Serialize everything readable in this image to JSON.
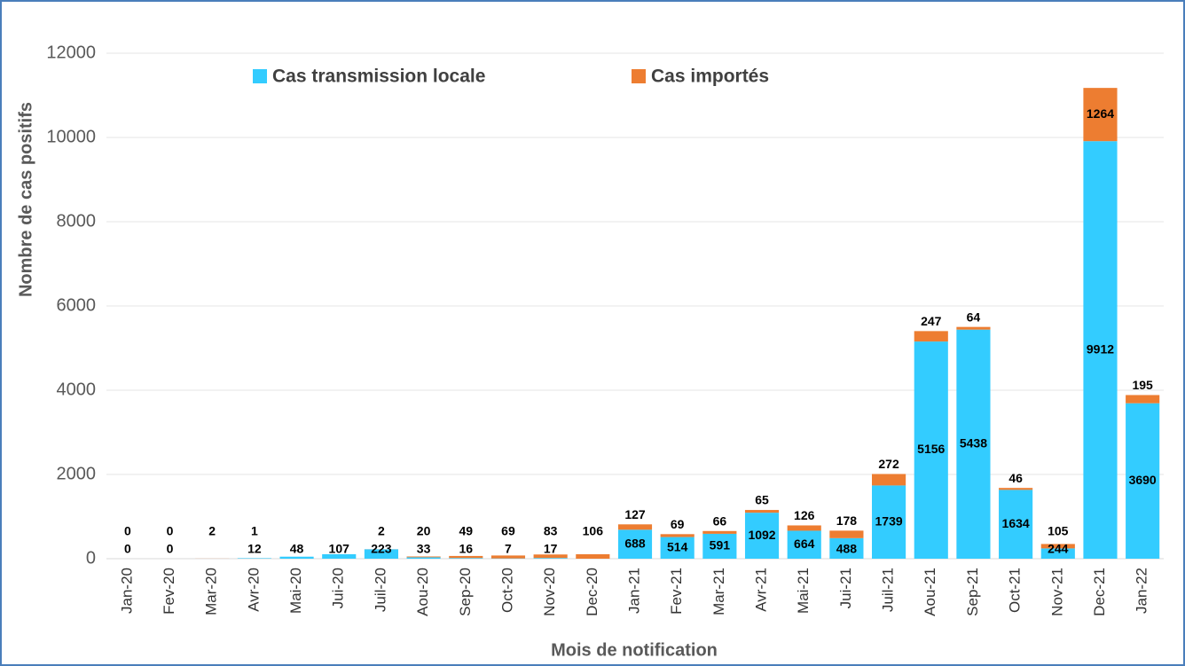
{
  "chart_data": {
    "type": "stacked-bar",
    "xlabel": "Mois de notification",
    "ylabel": "Nombre de cas positifs",
    "categories": [
      "Jan-20",
      "Fev-20",
      "Mar-20",
      "Avr-20",
      "Mai-20",
      "Jui-20",
      "Juil-20",
      "Aou-20",
      "Sep-20",
      "Oct-20",
      "Nov-20",
      "Dec-20",
      "Jan-21",
      "Fev-21",
      "Mar-21",
      "Avr-21",
      "Mai-21",
      "Jui-21",
      "Juil-21",
      "Aou-21",
      "Sep-21",
      "Oct-21",
      "Nov-21",
      "Dec-21",
      "Jan-22"
    ],
    "series": [
      {
        "name": "Cas transmission locale",
        "color": "#33ccff",
        "values": [
          0,
          0,
          0,
          12,
          48,
          107,
          223,
          33,
          16,
          7,
          17,
          0,
          688,
          514,
          591,
          1092,
          664,
          488,
          1739,
          5156,
          5438,
          1634,
          244,
          9912,
          3690
        ],
        "value_labels": [
          "0",
          "0",
          null,
          "12",
          "48",
          "107",
          "223",
          "33",
          "16",
          "7",
          "17",
          null,
          "688",
          "514",
          "591",
          "1092",
          "664",
          "488",
          "1739",
          "5156",
          "5438",
          "1634",
          "244",
          "9912",
          "3690"
        ]
      },
      {
        "name": "Cas importés",
        "color": "#ed7d31",
        "values": [
          0,
          0,
          2,
          1,
          0,
          0,
          2,
          20,
          49,
          69,
          83,
          106,
          127,
          69,
          66,
          65,
          126,
          178,
          272,
          247,
          64,
          46,
          105,
          1264,
          195
        ],
        "value_labels": [
          "0",
          "0",
          "2",
          "1",
          null,
          null,
          "2",
          "20",
          "49",
          "69",
          "83",
          "106",
          "127",
          "69",
          "66",
          "65",
          "126",
          "178",
          "272",
          "247",
          "64",
          "46",
          "105",
          "1264",
          "195"
        ]
      }
    ],
    "ylim": [
      0,
      12000
    ],
    "yticks": [
      0,
      2000,
      4000,
      6000,
      8000,
      10000,
      12000
    ],
    "grid": true,
    "legend": "top"
  }
}
